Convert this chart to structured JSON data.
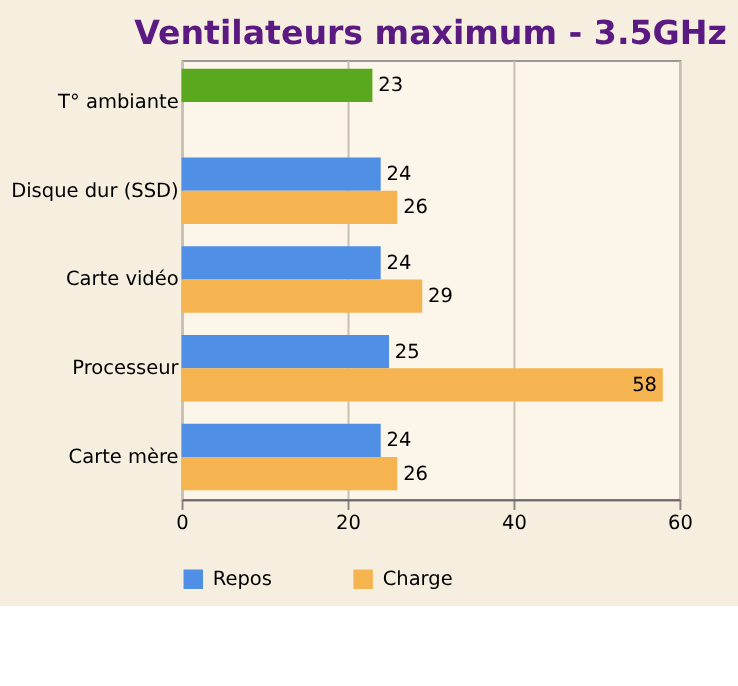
{
  "chart_data": {
    "type": "bar",
    "orientation": "horizontal",
    "title": "Ventilateurs maximum - 3.5GHz",
    "categories": [
      "T° ambiante",
      "Disque dur (SSD)",
      "Carte vidéo",
      "Processeur",
      "Carte mère"
    ],
    "series": [
      {
        "name": "Repos",
        "color": "#4f8fe6",
        "colors": [
          "#5aa81e",
          "#4f8fe6",
          "#4f8fe6",
          "#4f8fe6",
          "#4f8fe6"
        ],
        "values": [
          23,
          24,
          24,
          25,
          24
        ]
      },
      {
        "name": "Charge",
        "color": "#f5b450",
        "values": [
          null,
          26,
          29,
          58,
          26
        ]
      }
    ],
    "xlim": [
      0,
      60
    ],
    "xticks": [
      0,
      20,
      40,
      60
    ],
    "grid": "x",
    "data_labels": true,
    "legend": "bottom"
  }
}
